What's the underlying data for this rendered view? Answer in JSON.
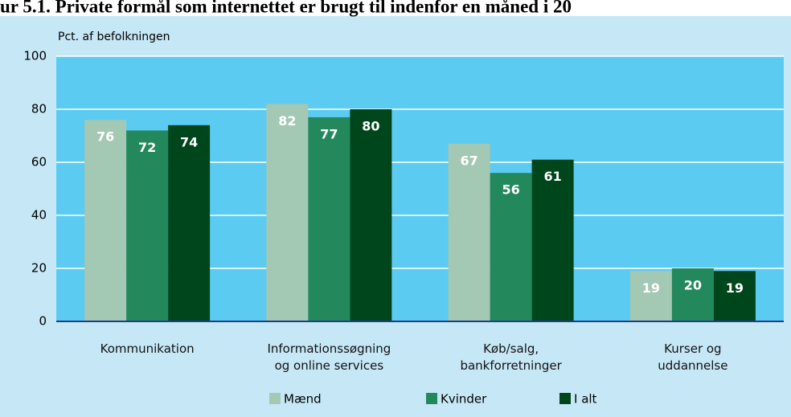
{
  "chart_data": {
    "type": "bar",
    "title": "ur 5.1. Private formål som internettet er brugt til indenfor en måned i 20",
    "y_label": "Pct. af befolkningen",
    "categories": [
      "Kommunikation",
      "Informationssøgning\nog online services",
      "Køb/salg,\nbankforretninger",
      "Kurser og\nuddannelse"
    ],
    "series": [
      {
        "name": "Mænd",
        "color": "#a3c8b3",
        "values": [
          76,
          82,
          67,
          19
        ]
      },
      {
        "name": "Kvinder",
        "color": "#23895d",
        "values": [
          72,
          77,
          56,
          20
        ]
      },
      {
        "name": "I alt",
        "color": "#00461c",
        "values": [
          74,
          80,
          61,
          19
        ]
      }
    ],
    "ylim": [
      0,
      100
    ],
    "yticks": [
      0,
      20,
      40,
      60,
      80,
      100
    ],
    "grid": true
  }
}
